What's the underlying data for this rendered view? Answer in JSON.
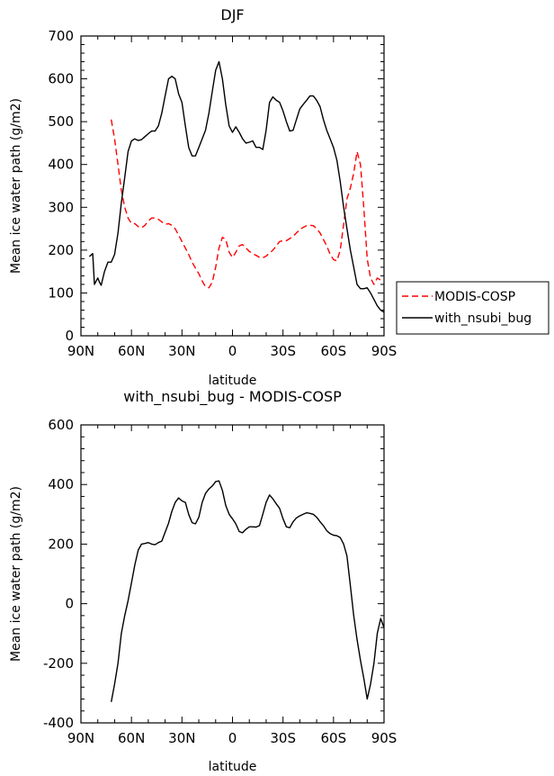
{
  "chart_data": [
    {
      "type": "line",
      "title": "DJF",
      "xlabel": "latitude",
      "ylabel": "Mean ice water path (g/m2)",
      "xlim": [
        90,
        -90
      ],
      "ylim": [
        0,
        700
      ],
      "xticks": [
        90,
        60,
        30,
        0,
        -30,
        -60,
        -90
      ],
      "xtick_labels": [
        "90N",
        "60N",
        "30N",
        "0",
        "30S",
        "60S",
        "90S"
      ],
      "yticks": [
        0,
        100,
        200,
        300,
        400,
        500,
        600,
        700
      ],
      "ytick_labels": [
        "0",
        "100",
        "200",
        "300",
        "400",
        "500",
        "600",
        "700"
      ],
      "legend": {
        "placement": "outside-right"
      },
      "series": [
        {
          "name": "MODIS-COSP",
          "color": "#ff0000",
          "style": "dashed",
          "x": [
            72,
            70,
            68,
            66,
            64,
            62,
            60,
            58,
            56,
            54,
            52,
            50,
            48,
            46,
            44,
            42,
            40,
            38,
            36,
            34,
            32,
            30,
            28,
            26,
            24,
            22,
            20,
            18,
            16,
            14,
            12,
            10,
            8,
            6,
            4,
            2,
            0,
            -2,
            -4,
            -6,
            -8,
            -10,
            -12,
            -14,
            -16,
            -18,
            -20,
            -22,
            -24,
            -26,
            -28,
            -30,
            -32,
            -34,
            -36,
            -38,
            -40,
            -42,
            -44,
            -46,
            -48,
            -50,
            -52,
            -54,
            -56,
            -58,
            -60,
            -62,
            -64,
            -66,
            -68,
            -70,
            -72,
            -74,
            -76,
            -78,
            -80,
            -82,
            -84,
            -86,
            -88
          ],
          "values": [
            505,
            460,
            400,
            340,
            300,
            275,
            262,
            262,
            255,
            252,
            258,
            268,
            275,
            275,
            272,
            266,
            260,
            262,
            258,
            250,
            235,
            220,
            205,
            190,
            172,
            158,
            145,
            128,
            115,
            112,
            125,
            160,
            205,
            230,
            225,
            195,
            183,
            195,
            210,
            213,
            205,
            197,
            192,
            188,
            183,
            182,
            186,
            193,
            200,
            210,
            220,
            222,
            222,
            227,
            232,
            240,
            248,
            253,
            257,
            258,
            257,
            250,
            240,
            225,
            210,
            190,
            178,
            175,
            200,
            260,
            320,
            345,
            380,
            430,
            400,
            300,
            180,
            135,
            120,
            135,
            130
          ]
        },
        {
          "name": "with_nsubi_bug",
          "color": "#000000",
          "style": "solid",
          "x": [
            85,
            83,
            82,
            80,
            79,
            78,
            76,
            74,
            72,
            70,
            68,
            66,
            64,
            62,
            60,
            58,
            56,
            54,
            52,
            50,
            48,
            46,
            44,
            42,
            40,
            38,
            36,
            34,
            32,
            30,
            28,
            26,
            24,
            22,
            20,
            18,
            16,
            14,
            12,
            10,
            8,
            6,
            4,
            2,
            0,
            -2,
            -4,
            -6,
            -8,
            -10,
            -12,
            -14,
            -16,
            -18,
            -20,
            -22,
            -24,
            -26,
            -28,
            -30,
            -32,
            -34,
            -36,
            -38,
            -40,
            -42,
            -44,
            -46,
            -48,
            -50,
            -52,
            -54,
            -56,
            -58,
            -60,
            -62,
            -64,
            -66,
            -68,
            -70,
            -72,
            -74,
            -76,
            -78,
            -80,
            -82,
            -84,
            -86,
            -88,
            -90
          ],
          "values": [
            185,
            192,
            120,
            135,
            125,
            118,
            150,
            172,
            172,
            190,
            240,
            310,
            370,
            430,
            455,
            460,
            456,
            458,
            465,
            472,
            478,
            478,
            490,
            520,
            560,
            600,
            606,
            600,
            565,
            545,
            490,
            440,
            420,
            420,
            440,
            460,
            480,
            520,
            570,
            620,
            640,
            600,
            540,
            490,
            475,
            488,
            475,
            460,
            450,
            452,
            455,
            440,
            440,
            435,
            480,
            545,
            558,
            550,
            545,
            525,
            500,
            478,
            480,
            505,
            530,
            540,
            550,
            560,
            560,
            550,
            535,
            505,
            480,
            460,
            440,
            410,
            360,
            300,
            250,
            200,
            160,
            120,
            110,
            110,
            112,
            100,
            85,
            70,
            60,
            55
          ]
        }
      ]
    },
    {
      "type": "line",
      "title": "with_nsubi_bug - MODIS-COSP",
      "xlabel": "latitude",
      "ylabel": "Mean ice water path (g/m2)",
      "xlim": [
        90,
        -90
      ],
      "ylim": [
        -400,
        600
      ],
      "xticks": [
        90,
        60,
        30,
        0,
        -30,
        -60,
        -90
      ],
      "xtick_labels": [
        "90N",
        "60N",
        "30N",
        "0",
        "30S",
        "60S",
        "90S"
      ],
      "yticks": [
        -400,
        -200,
        0,
        200,
        400,
        600
      ],
      "ytick_labels": [
        "-400",
        "-200",
        "0",
        "200",
        "400",
        "600"
      ],
      "series": [
        {
          "name": "with_nsubi_bug - MODIS-COSP",
          "color": "#000000",
          "style": "solid",
          "x": [
            72,
            70,
            68,
            66,
            64,
            62,
            60,
            58,
            56,
            54,
            52,
            50,
            48,
            46,
            44,
            42,
            40,
            38,
            36,
            34,
            32,
            30,
            28,
            26,
            24,
            22,
            20,
            18,
            16,
            14,
            12,
            10,
            8,
            6,
            4,
            2,
            0,
            -2,
            -4,
            -6,
            -8,
            -10,
            -12,
            -14,
            -16,
            -18,
            -20,
            -22,
            -24,
            -26,
            -28,
            -30,
            -32,
            -34,
            -36,
            -38,
            -40,
            -42,
            -44,
            -46,
            -48,
            -50,
            -52,
            -54,
            -56,
            -58,
            -60,
            -62,
            -64,
            -66,
            -68,
            -70,
            -72,
            -74,
            -76,
            -78,
            -80,
            -82,
            -84,
            -86,
            -88,
            -90
          ],
          "values": [
            -330,
            -270,
            -200,
            -100,
            -40,
            10,
            70,
            130,
            180,
            200,
            202,
            205,
            200,
            198,
            205,
            210,
            240,
            270,
            310,
            340,
            355,
            345,
            340,
            300,
            272,
            268,
            290,
            340,
            370,
            385,
            395,
            410,
            412,
            380,
            330,
            300,
            285,
            268,
            242,
            238,
            250,
            258,
            258,
            257,
            262,
            300,
            340,
            365,
            352,
            335,
            320,
            285,
            258,
            255,
            275,
            288,
            295,
            300,
            305,
            303,
            300,
            290,
            275,
            262,
            245,
            235,
            230,
            228,
            222,
            200,
            160,
            60,
            -40,
            -120,
            -190,
            -250,
            -320,
            -270,
            -200,
            -100,
            -50,
            -80
          ]
        }
      ]
    }
  ]
}
